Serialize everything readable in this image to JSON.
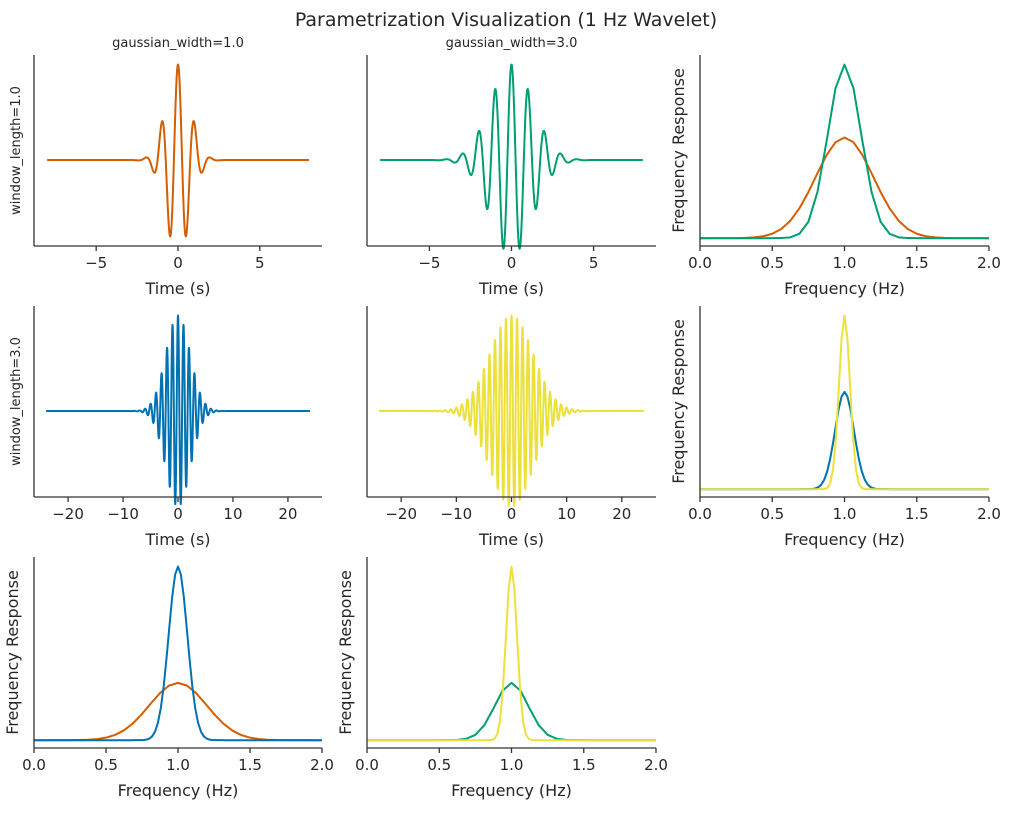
{
  "suptitle": "Parametrization Visualization (1 Hz Wavelet)",
  "chart_data": [
    {
      "type": "line",
      "title": "gaussian_width=1.0",
      "xlabel": "Time (s)",
      "ylabel": "window_length=1.0",
      "xlim": [
        -8.8,
        8.8
      ],
      "ylim": [
        -0.9,
        1.1
      ],
      "xticks": [
        -5,
        0,
        5
      ],
      "xtick_labels": [
        "−5",
        "0",
        "5"
      ],
      "yticks": [],
      "series": [
        {
          "name": "gaussian_width=1.0, window_length=1.0",
          "color": "#d55e00",
          "kind": "wavelet",
          "freq_hz": 1,
          "sigma": 0.73,
          "t_range": [
            -8,
            8
          ]
        }
      ]
    },
    {
      "type": "line",
      "title": "gaussian_width=3.0",
      "xlabel": "Time (s)",
      "ylabel": "",
      "xlim": [
        -8.8,
        8.8
      ],
      "ylim": [
        -0.9,
        1.1
      ],
      "xticks": [
        -5,
        0,
        5
      ],
      "xtick_labels": [
        "−5",
        "0",
        "5"
      ],
      "yticks": [],
      "series": [
        {
          "name": "gaussian_width=3.0, window_length=1.0",
          "color": "#009e73",
          "kind": "wavelet",
          "freq_hz": 1,
          "sigma": 1.29,
          "t_range": [
            -8,
            8
          ]
        }
      ]
    },
    {
      "type": "line",
      "title": "",
      "xlabel": "Frequency (Hz)",
      "ylabel": "Frequency Response",
      "xlim": [
        0,
        2
      ],
      "xticks": [
        0,
        0.5,
        1,
        1.5,
        2
      ],
      "xtick_labels": [
        "0.0",
        "0.5",
        "1.0",
        "1.5",
        "2.0"
      ],
      "yticks": [],
      "series": [
        {
          "name": "gaussian_width=1.0, window_length=1.0",
          "color": "#d55e00",
          "kind": "gaussian",
          "center": 1.0,
          "sigma_f": 0.2,
          "amplitude": 0.58,
          "step": 0.0625
        },
        {
          "name": "gaussian_width=3.0, window_length=1.0",
          "color": "#009e73",
          "kind": "gaussian",
          "center": 1.0,
          "sigma_f": 0.115,
          "amplitude": 1.0,
          "step": 0.0625
        }
      ]
    },
    {
      "type": "line",
      "title": "",
      "xlabel": "Time (s)",
      "ylabel": "window_length=3.0",
      "xlim": [
        -26.2,
        26.2
      ],
      "ylim": [
        -0.9,
        1.1
      ],
      "xticks": [
        -20,
        -10,
        0,
        10,
        20
      ],
      "xtick_labels": [
        "−20",
        "−10",
        "0",
        "10",
        "20"
      ],
      "yticks": [],
      "series": [
        {
          "name": "gaussian_width=1.0, window_length=3.0",
          "color": "#0072b2",
          "kind": "wavelet",
          "freq_hz": 1,
          "sigma": 2.2,
          "t_range": [
            -24,
            24
          ]
        }
      ]
    },
    {
      "type": "line",
      "title": "",
      "xlabel": "Time (s)",
      "ylabel": "",
      "xlim": [
        -26.2,
        26.2
      ],
      "ylim": [
        -0.9,
        1.1
      ],
      "xticks": [
        -20,
        -10,
        0,
        10,
        20
      ],
      "xtick_labels": [
        "−20",
        "−10",
        "0",
        "10",
        "20"
      ],
      "yticks": [],
      "series": [
        {
          "name": "gaussian_width=3.0, window_length=3.0",
          "color": "#ece03a",
          "kind": "wavelet",
          "freq_hz": 1,
          "sigma": 3.9,
          "t_range": [
            -24,
            24
          ]
        }
      ]
    },
    {
      "type": "line",
      "title": "",
      "xlabel": "Frequency (Hz)",
      "ylabel": "Frequency Response",
      "xlim": [
        0,
        2
      ],
      "xticks": [
        0,
        0.5,
        1,
        1.5,
        2
      ],
      "xtick_labels": [
        "0.0",
        "0.5",
        "1.0",
        "1.5",
        "2.0"
      ],
      "yticks": [],
      "series": [
        {
          "name": "gaussian_width=1.0, window_length=3.0",
          "color": "#0072b2",
          "kind": "gaussian",
          "center": 1.0,
          "sigma_f": 0.065,
          "amplitude": 0.56,
          "step": 0.02
        },
        {
          "name": "gaussian_width=3.0, window_length=3.0",
          "color": "#ece03a",
          "kind": "gaussian",
          "center": 1.0,
          "sigma_f": 0.038,
          "amplitude": 1.0,
          "step": 0.02
        }
      ]
    },
    {
      "type": "line",
      "title": "",
      "xlabel": "Frequency (Hz)",
      "ylabel": "Frequency Response",
      "xlim": [
        0,
        2
      ],
      "xticks": [
        0,
        0.5,
        1,
        1.5,
        2
      ],
      "xtick_labels": [
        "0.0",
        "0.5",
        "1.0",
        "1.5",
        "2.0"
      ],
      "yticks": [],
      "series": [
        {
          "name": "gaussian_width=1.0, window_length=1.0",
          "color": "#d55e00",
          "kind": "gaussian",
          "center": 1.0,
          "sigma_f": 0.2,
          "amplitude": 0.33,
          "step": 0.0625
        },
        {
          "name": "gaussian_width=1.0, window_length=3.0",
          "color": "#0072b2",
          "kind": "gaussian",
          "center": 1.0,
          "sigma_f": 0.065,
          "amplitude": 1.0,
          "step": 0.02
        }
      ]
    },
    {
      "type": "line",
      "title": "",
      "xlabel": "Frequency (Hz)",
      "ylabel": "Frequency Response",
      "xlim": [
        0,
        2
      ],
      "xticks": [
        0,
        0.5,
        1,
        1.5,
        2
      ],
      "xtick_labels": [
        "0.0",
        "0.5",
        "1.0",
        "1.5",
        "2.0"
      ],
      "yticks": [],
      "series": [
        {
          "name": "gaussian_width=3.0, window_length=1.0",
          "color": "#009e73",
          "kind": "gaussian",
          "center": 1.0,
          "sigma_f": 0.115,
          "amplitude": 0.33,
          "step": 0.0625
        },
        {
          "name": "gaussian_width=3.0, window_length=3.0",
          "color": "#ece03a",
          "kind": "gaussian",
          "center": 1.0,
          "sigma_f": 0.038,
          "amplitude": 1.0,
          "step": 0.02
        }
      ]
    }
  ]
}
